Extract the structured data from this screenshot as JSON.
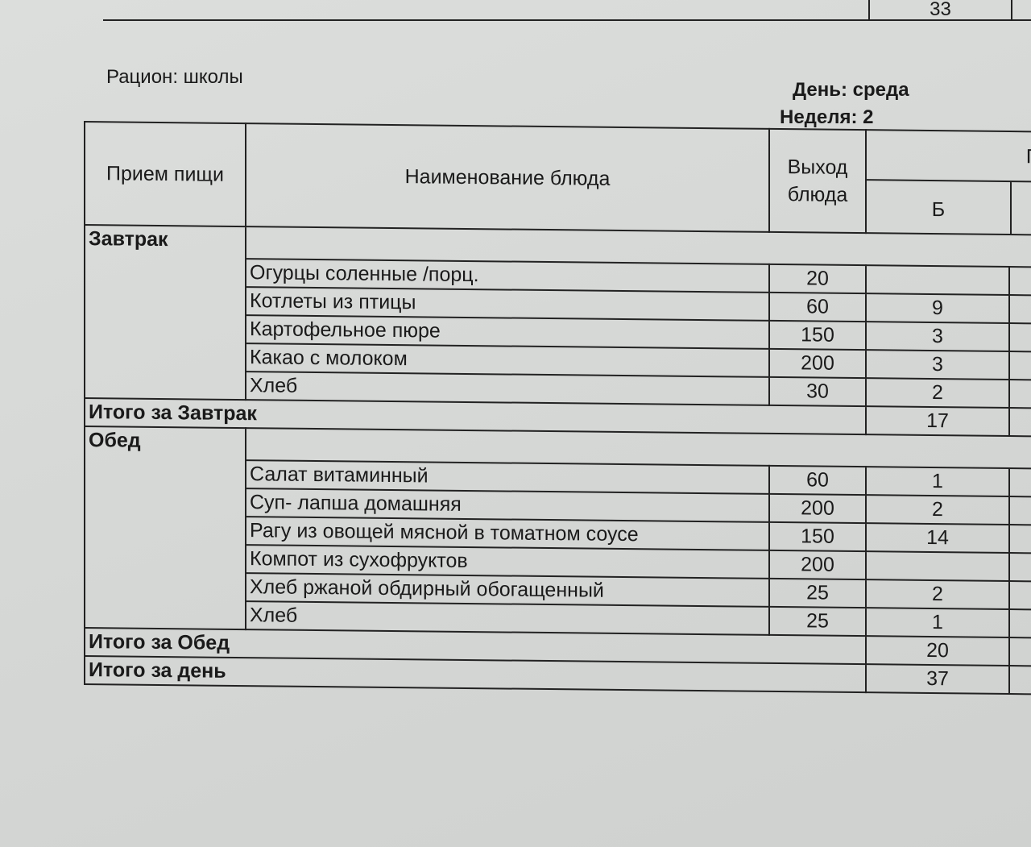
{
  "previous_total": {
    "value": "33"
  },
  "header": {
    "ration": "Рацион: школы",
    "day": "День:   среда",
    "week": "Неделя: 2"
  },
  "columns": {
    "meal": "Прием пищи",
    "dish": "Наименование блюда",
    "output_l1": "Выход",
    "output_l2": "блюда",
    "nutrients": "Пище",
    "protein": "Б"
  },
  "breakfast": {
    "label": "Завтрак",
    "items": [
      {
        "name": "Огурцы соленные /порц.",
        "output": "20",
        "b": ""
      },
      {
        "name": "Котлеты из птицы",
        "output": "60",
        "b": "9"
      },
      {
        "name": "Картофельное пюре",
        "output": "150",
        "b": "3"
      },
      {
        "name": "Какао с молоком",
        "output": "200",
        "b": "3"
      },
      {
        "name": "Хлеб",
        "output": "30",
        "b": "2"
      }
    ],
    "total_label": "Итого за Завтрак",
    "total_b": "17"
  },
  "lunch": {
    "label": "Обед",
    "items": [
      {
        "name": "Салат витаминный",
        "output": "60",
        "b": "1"
      },
      {
        "name": "Суп- лапша домашняя",
        "output": "200",
        "b": "2"
      },
      {
        "name": "Рагу из овощей мясной в томатном соусе",
        "output": "150",
        "b": "14"
      },
      {
        "name": "Компот из сухофруктов",
        "output": "200",
        "b": ""
      },
      {
        "name": "Хлеб ржаной обдирный обогащенный",
        "output": "25",
        "b": "2"
      },
      {
        "name": "Хлеб",
        "output": "25",
        "b": "1"
      }
    ],
    "total_label": "Итого за Обед",
    "total_b": "20"
  },
  "day_total": {
    "label": "Итого за день",
    "b": "37"
  }
}
